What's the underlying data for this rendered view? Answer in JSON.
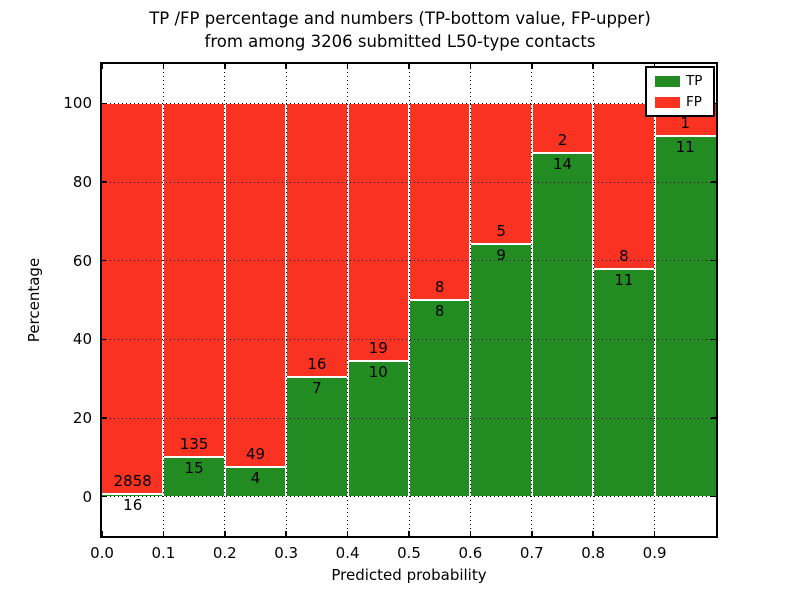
{
  "title": {
    "line1": "TP /FP percentage and numbers (TP-bottom value, FP-upper)",
    "line2": "from among 3206 submitted L50-type contacts"
  },
  "axes": {
    "xlabel": "Predicted probability",
    "ylabel": "Percentage",
    "x_tick_labels": [
      "0.0",
      "0.1",
      "0.2",
      "0.3",
      "0.4",
      "0.5",
      "0.6",
      "0.7",
      "0.8",
      "0.9"
    ],
    "y_tick_labels": [
      "0",
      "20",
      "40",
      "60",
      "80",
      "100"
    ]
  },
  "legend": {
    "position": "upper right",
    "items": [
      {
        "label": "TP",
        "color": "#228b22"
      },
      {
        "label": "FP",
        "color": "#f93222"
      }
    ]
  },
  "chart_data": {
    "type": "bar",
    "stacked": true,
    "normalized": "percent (TP+FP = 100% per bin)",
    "title": "TP /FP percentage and numbers (TP-bottom value, FP-upper) from among 3206 submitted L50-type contacts",
    "xlabel": "Predicted probability",
    "ylabel": "Percentage",
    "xlim": [
      0.0,
      1.0
    ],
    "ylim": [
      -10,
      110
    ],
    "bin_width": 0.1,
    "bin_starts": [
      0.0,
      0.1,
      0.2,
      0.3,
      0.4,
      0.5,
      0.6,
      0.7,
      0.8,
      0.9
    ],
    "x_ticks": [
      0.0,
      0.1,
      0.2,
      0.3,
      0.4,
      0.5,
      0.6,
      0.7,
      0.8,
      0.9
    ],
    "y_ticks": [
      0,
      20,
      40,
      60,
      80,
      100
    ],
    "grid": true,
    "legend_position": "upper right",
    "total_contacts": 3206,
    "annotation_scheme": "TP count printed below segment boundary, FP count printed above it",
    "series": [
      {
        "name": "TP",
        "color": "#228b22",
        "counts": [
          16,
          15,
          4,
          7,
          10,
          8,
          9,
          14,
          11,
          11
        ]
      },
      {
        "name": "FP",
        "color": "#f93222",
        "counts": [
          2858,
          135,
          49,
          16,
          19,
          8,
          5,
          2,
          8,
          1
        ]
      }
    ]
  }
}
